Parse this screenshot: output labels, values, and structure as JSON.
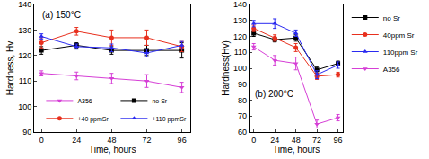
{
  "chart_data": [
    {
      "type": "line",
      "title": "(a) 150°C",
      "x_label": "Time, hours",
      "y_label": "Hardness, Hv",
      "x": [
        0,
        24,
        48,
        72,
        96
      ],
      "xlim": [
        -5,
        102
      ],
      "xticks": [
        0,
        24,
        48,
        72,
        96
      ],
      "ylim": [
        90,
        140
      ],
      "yticks": [
        90,
        100,
        110,
        120,
        130,
        140
      ],
      "legend": "lower right",
      "series": [
        {
          "name": "A356",
          "color": "#d63fd6",
          "marker": "triangle-down",
          "line_style": "solid",
          "values": [
            113,
            112,
            111,
            110,
            107.5
          ],
          "errors": [
            1,
            1.5,
            2,
            2.5,
            2
          ]
        },
        {
          "name": "no Sr",
          "color": "#000000",
          "marker": "square",
          "line_style": "solid",
          "values": [
            122,
            124,
            122,
            122,
            122
          ],
          "errors": [
            1.5,
            1,
            1.5,
            2,
            3
          ]
        },
        {
          "name": "+40 ppmSr",
          "color": "#e8301e",
          "marker": "circle",
          "line_style": "solid",
          "values": [
            125,
            129.5,
            127,
            127,
            123.5
          ],
          "errors": [
            2,
            1.5,
            3,
            3,
            2
          ]
        },
        {
          "name": "+110 ppmSr",
          "color": "#2a2af0",
          "marker": "triangle-up",
          "line_style": "solid",
          "values": [
            127.5,
            123.5,
            123,
            121,
            124
          ],
          "errors": [
            1,
            1,
            1.5,
            1.5,
            1.5
          ]
        }
      ]
    },
    {
      "type": "line",
      "title": "(b) 200°C",
      "x_label": "Time, hours",
      "y_label": "Hardness(Hv)",
      "x": [
        0,
        24,
        48,
        72,
        96
      ],
      "xlim": [
        -5,
        102
      ],
      "xticks": [
        0,
        24,
        48,
        72,
        96
      ],
      "ylim": [
        60,
        140
      ],
      "yticks": [
        60,
        70,
        80,
        90,
        100,
        110,
        120,
        130,
        140
      ],
      "legend": "upper right",
      "series": [
        {
          "name": "no Sr",
          "color": "#000000",
          "marker": "square",
          "line_style": "solid",
          "values": [
            122,
            118,
            119,
            99,
            103
          ],
          "errors": [
            2,
            1.5,
            2,
            2,
            1.5
          ]
        },
        {
          "name": "40ppm Sr",
          "color": "#e8301e",
          "marker": "circle",
          "line_style": "solid",
          "values": [
            125,
            119,
            113,
            95,
            96
          ],
          "errors": [
            2,
            2,
            2.5,
            2,
            1.5
          ]
        },
        {
          "name": "110ppm Sr",
          "color": "#2a2af0",
          "marker": "triangle-up",
          "line_style": "solid",
          "values": [
            128,
            128,
            122,
            96,
            102
          ],
          "errors": [
            2,
            3,
            2,
            2.5,
            2
          ]
        },
        {
          "name": "A356",
          "color": "#d63fd6",
          "marker": "triangle-down",
          "line_style": "solid",
          "values": [
            113.5,
            105,
            103,
            65,
            69
          ],
          "errors": [
            2,
            3,
            4,
            2.5,
            2
          ]
        }
      ]
    }
  ]
}
